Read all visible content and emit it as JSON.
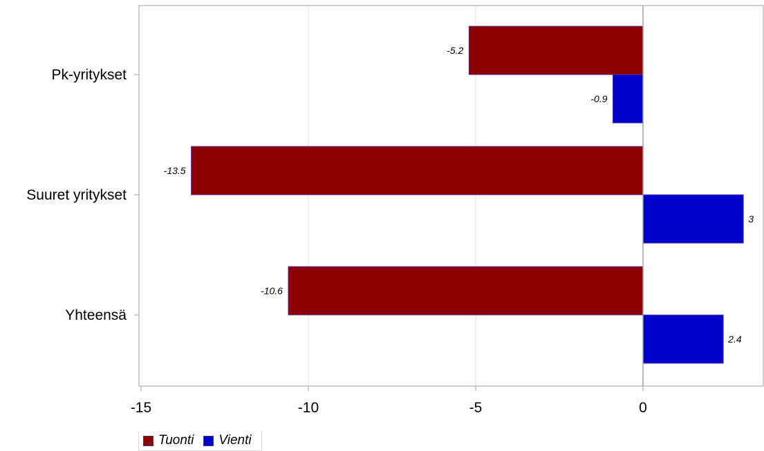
{
  "chart_data": {
    "type": "bar",
    "orientation": "horizontal",
    "categories": [
      "Pk-yritykset",
      "Suuret yritykset",
      "Yhteensä"
    ],
    "series": [
      {
        "name": "Tuonti",
        "values": [
          -5.2,
          -13.5,
          -10.6
        ],
        "color": "#8b0000"
      },
      {
        "name": "Vienti",
        "values": [
          -0.9,
          3,
          2.4
        ],
        "color": "#0000cd"
      }
    ],
    "data_labels": [
      [
        "-5.2",
        "-0.9"
      ],
      [
        "-13.5",
        "3"
      ],
      [
        "-10.6",
        "2.4"
      ]
    ],
    "xlim": [
      -15,
      3.6
    ],
    "xticks": [
      -15,
      -10,
      -5,
      0
    ],
    "xtick_labels": [
      "-15",
      "-10",
      "-5",
      "0"
    ],
    "grid": "vertical",
    "legend_position": "bottom-left"
  },
  "legend": {
    "items": [
      {
        "label": "Tuonti",
        "color": "#8b0000"
      },
      {
        "label": "Vienti",
        "color": "#0000cd"
      }
    ]
  }
}
